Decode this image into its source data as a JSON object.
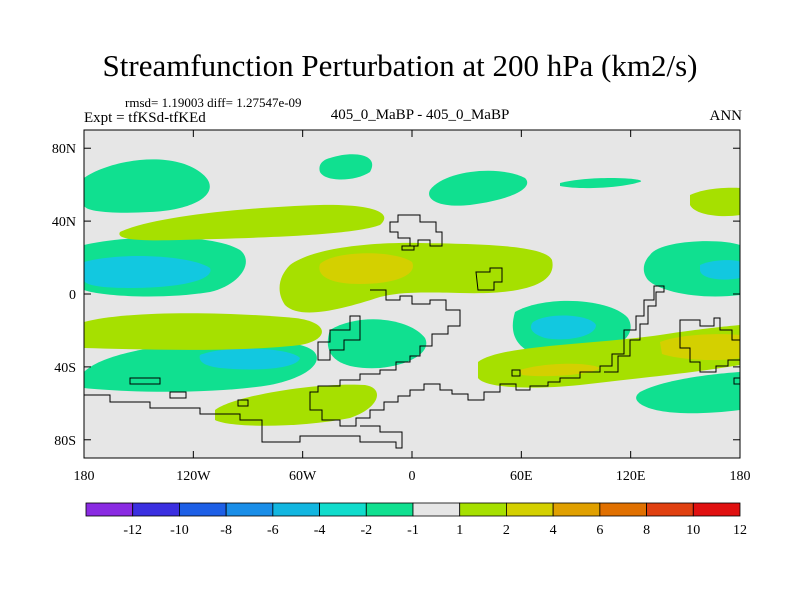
{
  "title": "Streamfunction Perturbation at 200 hPa (km2/s)",
  "stats_line": "rmsd= 1.19003 diff= 1.27547e-09",
  "experiment_line": "Expt = tfKSd-tfKEd",
  "cases_line": "405_0_MaBP - 405_0_MaBP",
  "season_label": "ANN",
  "chart_data": {
    "type": "contour-map",
    "title": "Streamfunction Perturbation at 200 hPa (km2/s)",
    "xlabel": "",
    "ylabel": "",
    "xlim": [
      -180,
      180
    ],
    "ylim": [
      -90,
      90
    ],
    "x_ticks": [
      {
        "value": -180,
        "label": "180"
      },
      {
        "value": -120,
        "label": "120W"
      },
      {
        "value": -60,
        "label": "60W"
      },
      {
        "value": 0,
        "label": "0"
      },
      {
        "value": 60,
        "label": "60E"
      },
      {
        "value": 120,
        "label": "120E"
      },
      {
        "value": 180,
        "label": "180"
      }
    ],
    "y_ticks": [
      {
        "value": 80,
        "label": "80N"
      },
      {
        "value": 40,
        "label": "40N"
      },
      {
        "value": 0,
        "label": "0"
      },
      {
        "value": -40,
        "label": "40S"
      },
      {
        "value": -80,
        "label": "80S"
      }
    ],
    "colorbar": {
      "levels": [
        "-12",
        "-10",
        "-8",
        "-6",
        "-4",
        "-2",
        "-1",
        "1",
        "2",
        "4",
        "6",
        "8",
        "10",
        "12"
      ],
      "colors": [
        "#8a2be2",
        "#3b2fe0",
        "#1d5fe6",
        "#1a8ee8",
        "#12b6e0",
        "#10dccc",
        "#10e090",
        "#e6e6e6",
        "#a6e000",
        "#d4d000",
        "#e0a000",
        "#e07000",
        "#e04010",
        "#e01010"
      ]
    },
    "regions": [
      {
        "name": "N Pacific 60N",
        "lon_range": [
          -180,
          -120
        ],
        "lat_range": [
          50,
          68
        ],
        "value_bin": "-2 to -1"
      },
      {
        "name": "N Atlantic 40N band",
        "lon_range": [
          -120,
          0
        ],
        "lat_range": [
          40,
          55
        ],
        "value_bin": "1 to 2"
      },
      {
        "name": "Central Pacific 20N",
        "lon_range": [
          -180,
          -100
        ],
        "lat_range": [
          5,
          30
        ],
        "value_bin": "-4 to -2",
        "peak": "-4"
      },
      {
        "name": "Tropical belt 15N",
        "lon_range": [
          -100,
          80
        ],
        "lat_range": [
          -10,
          35
        ],
        "value_bin": "1 to 2",
        "peak": "2 to 4"
      },
      {
        "name": "W Pacific 20N",
        "lon_range": [
          130,
          180
        ],
        "lat_range": [
          5,
          35
        ],
        "value_bin": "-4 to -2"
      },
      {
        "name": "S Pacific 30S",
        "lon_range": [
          -180,
          -100
        ],
        "lat_range": [
          -50,
          -20
        ],
        "value_bin": "-4 to -2"
      },
      {
        "name": "S Indian 25S",
        "lon_range": [
          50,
          115
        ],
        "lat_range": [
          -45,
          -10
        ],
        "value_bin": "-4 to -2"
      },
      {
        "name": "S Ocean 40S band",
        "lon_range": [
          30,
          180
        ],
        "lat_range": [
          -55,
          -20
        ],
        "value_bin": "1 to 2",
        "peak": "2 to 4"
      },
      {
        "name": "S Ocean 70S",
        "lon_range": [
          -100,
          -20
        ],
        "lat_range": [
          -80,
          -55
        ],
        "value_bin": "1 to 2"
      },
      {
        "name": "S Ocean 60S Pacific",
        "lon_range": [
          120,
          180
        ],
        "lat_range": [
          -72,
          -52
        ],
        "value_bin": "-2 to -1"
      }
    ]
  }
}
